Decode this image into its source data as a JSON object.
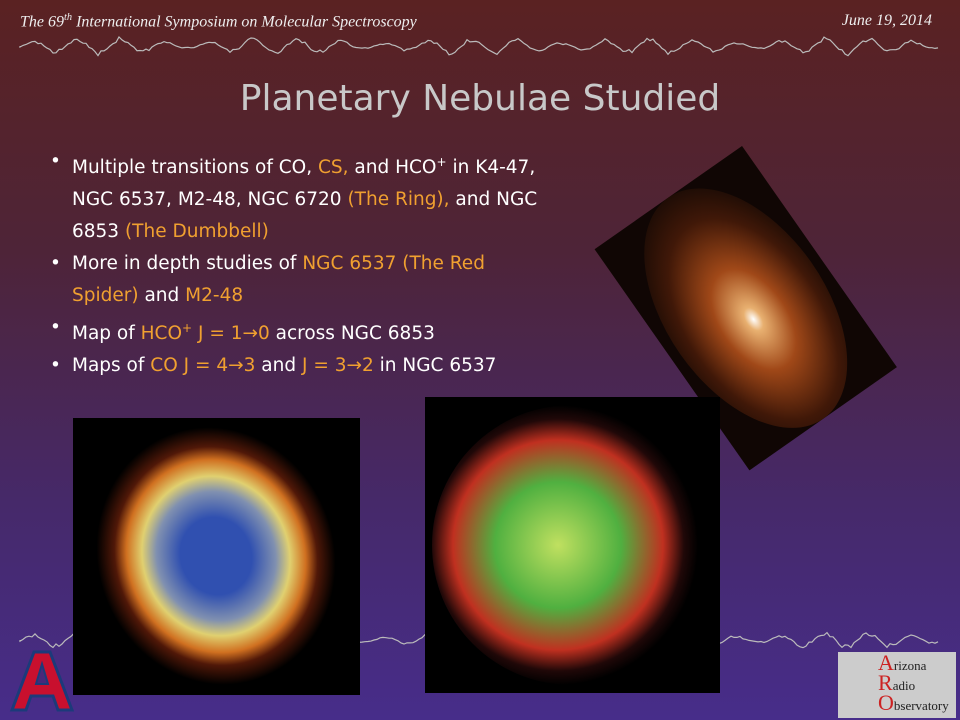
{
  "header": {
    "left": [
      {
        "text": "The 69"
      },
      {
        "text": "th",
        "style": "sup"
      },
      {
        "text": " International Symposium on Molecular Spectroscopy"
      }
    ],
    "right": "June 19, 2014"
  },
  "title": "Planetary Nebulae Studied",
  "highlight_color": "#f0a030",
  "bullets": [
    [
      {
        "text": "Multiple transitions of CO, "
      },
      {
        "text": "CS,",
        "highlight": true
      },
      {
        "text": " and HCO"
      },
      {
        "text": "+",
        "style": "sup"
      },
      {
        "text": " in K4-47, NGC 6537, M2-48, NGC 6720 "
      },
      {
        "text": "(The Ring),",
        "highlight": true
      },
      {
        "text": " and NGC 6853 "
      },
      {
        "text": "(The Dumbbell)",
        "highlight": true
      }
    ],
    [
      {
        "text": "More in depth studies of "
      },
      {
        "text": "NGC 6537 (The Red Spider)",
        "highlight": true
      },
      {
        "text": " and "
      },
      {
        "text": "M2-48",
        "highlight": true
      }
    ],
    [
      {
        "text": "Map of "
      },
      {
        "text": "HCO",
        "highlight": true
      },
      {
        "text": "+",
        "style": "sup",
        "highlight": true
      },
      {
        "text": " J = 1→0",
        "highlight": true
      },
      {
        "text": " across NGC 6853"
      }
    ],
    [
      {
        "text": "Maps of "
      },
      {
        "text": "CO J = 4→3",
        "highlight": true
      },
      {
        "text": " and "
      },
      {
        "text": "J = 3→2",
        "highlight": true
      },
      {
        "text": " in NGC 6537"
      }
    ]
  ],
  "logo": {
    "lines": [
      {
        "initial": "A",
        "rest": "rizona"
      },
      {
        "initial": "R",
        "rest": "adio"
      },
      {
        "initial": "O",
        "rest": "bservatory"
      }
    ]
  }
}
